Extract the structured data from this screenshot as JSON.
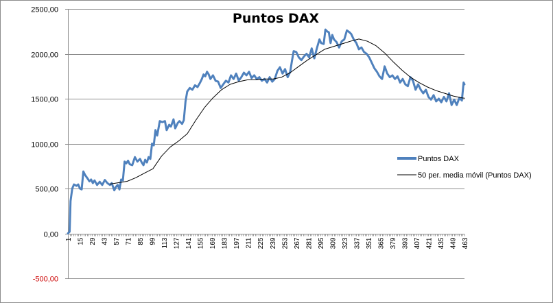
{
  "chart_data": {
    "type": "line",
    "title": "Puntos DAX",
    "xlabel": "",
    "ylabel": "",
    "ylim": [
      -500,
      2500
    ],
    "yticks": [
      -500,
      0,
      500,
      1000,
      1500,
      2000,
      2500
    ],
    "ytick_labels": [
      "-500,00",
      "0,00",
      "500,00",
      "1000,00",
      "1500,00",
      "2000,00",
      "2500,00"
    ],
    "xlim": [
      1,
      463
    ],
    "xticks": [
      1,
      15,
      29,
      43,
      57,
      71,
      85,
      99,
      113,
      127,
      141,
      155,
      169,
      183,
      197,
      211,
      225,
      239,
      253,
      267,
      281,
      295,
      309,
      323,
      337,
      351,
      365,
      379,
      393,
      407,
      421,
      435,
      449,
      463
    ],
    "grid": true,
    "legend_position": "right",
    "series": [
      {
        "name": "Puntos DAX",
        "color": "#4f81bd",
        "points": [
          [
            1,
            0
          ],
          [
            3,
            20
          ],
          [
            4,
            360
          ],
          [
            6,
            500
          ],
          [
            8,
            545
          ],
          [
            11,
            530
          ],
          [
            13,
            545
          ],
          [
            15,
            500
          ],
          [
            17,
            490
          ],
          [
            19,
            690
          ],
          [
            21,
            650
          ],
          [
            24,
            610
          ],
          [
            26,
            580
          ],
          [
            28,
            600
          ],
          [
            30,
            560
          ],
          [
            32,
            590
          ],
          [
            35,
            540
          ],
          [
            38,
            575
          ],
          [
            41,
            540
          ],
          [
            44,
            595
          ],
          [
            47,
            560
          ],
          [
            50,
            540
          ],
          [
            52,
            560
          ],
          [
            55,
            480
          ],
          [
            57,
            520
          ],
          [
            59,
            540
          ],
          [
            61,
            490
          ],
          [
            63,
            600
          ],
          [
            65,
            590
          ],
          [
            67,
            800
          ],
          [
            69,
            780
          ],
          [
            71,
            810
          ],
          [
            73,
            770
          ],
          [
            76,
            760
          ],
          [
            79,
            850
          ],
          [
            82,
            800
          ],
          [
            85,
            830
          ],
          [
            87,
            790
          ],
          [
            89,
            760
          ],
          [
            91,
            820
          ],
          [
            93,
            790
          ],
          [
            95,
            850
          ],
          [
            97,
            830
          ],
          [
            99,
            1000
          ],
          [
            101,
            980
          ],
          [
            103,
            1150
          ],
          [
            105,
            1090
          ],
          [
            108,
            1250
          ],
          [
            111,
            1240
          ],
          [
            114,
            1250
          ],
          [
            116,
            1150
          ],
          [
            119,
            1210
          ],
          [
            121,
            1190
          ],
          [
            124,
            1270
          ],
          [
            126,
            1170
          ],
          [
            129,
            1230
          ],
          [
            131,
            1250
          ],
          [
            134,
            1220
          ],
          [
            136,
            1260
          ],
          [
            138,
            1470
          ],
          [
            140,
            1580
          ],
          [
            143,
            1620
          ],
          [
            146,
            1600
          ],
          [
            149,
            1650
          ],
          [
            152,
            1630
          ],
          [
            155,
            1680
          ],
          [
            157,
            1720
          ],
          [
            159,
            1770
          ],
          [
            161,
            1750
          ],
          [
            163,
            1800
          ],
          [
            165,
            1770
          ],
          [
            167,
            1720
          ],
          [
            170,
            1760
          ],
          [
            173,
            1700
          ],
          [
            176,
            1690
          ],
          [
            179,
            1620
          ],
          [
            182,
            1660
          ],
          [
            185,
            1700
          ],
          [
            188,
            1680
          ],
          [
            191,
            1760
          ],
          [
            194,
            1720
          ],
          [
            197,
            1780
          ],
          [
            200,
            1700
          ],
          [
            203,
            1740
          ],
          [
            206,
            1790
          ],
          [
            209,
            1760
          ],
          [
            212,
            1800
          ],
          [
            215,
            1730
          ],
          [
            218,
            1760
          ],
          [
            221,
            1720
          ],
          [
            224,
            1740
          ],
          [
            227,
            1700
          ],
          [
            230,
            1720
          ],
          [
            233,
            1680
          ],
          [
            236,
            1740
          ],
          [
            239,
            1690
          ],
          [
            242,
            1720
          ],
          [
            245,
            1810
          ],
          [
            248,
            1850
          ],
          [
            251,
            1780
          ],
          [
            254,
            1830
          ],
          [
            257,
            1740
          ],
          [
            260,
            1800
          ],
          [
            262,
            1920
          ],
          [
            264,
            2030
          ],
          [
            267,
            2020
          ],
          [
            270,
            1960
          ],
          [
            273,
            1930
          ],
          [
            276,
            1970
          ],
          [
            279,
            2000
          ],
          [
            282,
            1960
          ],
          [
            285,
            2060
          ],
          [
            288,
            1950
          ],
          [
            291,
            2060
          ],
          [
            294,
            2160
          ],
          [
            296,
            2120
          ],
          [
            299,
            2110
          ],
          [
            301,
            2270
          ],
          [
            303,
            2250
          ],
          [
            305,
            2240
          ],
          [
            307,
            2120
          ],
          [
            309,
            2210
          ],
          [
            311,
            2160
          ],
          [
            314,
            2130
          ],
          [
            317,
            2070
          ],
          [
            320,
            2140
          ],
          [
            323,
            2160
          ],
          [
            326,
            2260
          ],
          [
            329,
            2240
          ],
          [
            331,
            2220
          ],
          [
            334,
            2160
          ],
          [
            337,
            2120
          ],
          [
            340,
            2050
          ],
          [
            343,
            2070
          ],
          [
            346,
            2020
          ],
          [
            349,
            2000
          ],
          [
            352,
            1960
          ],
          [
            355,
            1900
          ],
          [
            358,
            1840
          ],
          [
            361,
            1800
          ],
          [
            364,
            1750
          ],
          [
            367,
            1720
          ],
          [
            370,
            1860
          ],
          [
            373,
            1780
          ],
          [
            376,
            1740
          ],
          [
            379,
            1760
          ],
          [
            382,
            1720
          ],
          [
            385,
            1750
          ],
          [
            388,
            1680
          ],
          [
            391,
            1720
          ],
          [
            394,
            1660
          ],
          [
            397,
            1640
          ],
          [
            400,
            1740
          ],
          [
            403,
            1700
          ],
          [
            406,
            1600
          ],
          [
            409,
            1660
          ],
          [
            412,
            1600
          ],
          [
            415,
            1560
          ],
          [
            418,
            1600
          ],
          [
            421,
            1520
          ],
          [
            424,
            1490
          ],
          [
            427,
            1540
          ],
          [
            430,
            1470
          ],
          [
            433,
            1500
          ],
          [
            436,
            1460
          ],
          [
            439,
            1520
          ],
          [
            442,
            1470
          ],
          [
            445,
            1560
          ],
          [
            448,
            1430
          ],
          [
            451,
            1490
          ],
          [
            454,
            1430
          ],
          [
            457,
            1510
          ],
          [
            460,
            1480
          ],
          [
            462,
            1680
          ],
          [
            463,
            1660
          ]
        ]
      },
      {
        "name": "50 per. media móvil (Puntos DAX)",
        "color": "#000000",
        "points": [
          [
            50,
            550
          ],
          [
            60,
            565
          ],
          [
            70,
            580
          ],
          [
            80,
            620
          ],
          [
            90,
            670
          ],
          [
            100,
            720
          ],
          [
            110,
            860
          ],
          [
            120,
            960
          ],
          [
            130,
            1030
          ],
          [
            140,
            1110
          ],
          [
            150,
            1260
          ],
          [
            160,
            1400
          ],
          [
            170,
            1510
          ],
          [
            180,
            1600
          ],
          [
            190,
            1660
          ],
          [
            200,
            1690
          ],
          [
            210,
            1710
          ],
          [
            220,
            1710
          ],
          [
            230,
            1720
          ],
          [
            240,
            1720
          ],
          [
            250,
            1740
          ],
          [
            260,
            1790
          ],
          [
            270,
            1860
          ],
          [
            280,
            1930
          ],
          [
            290,
            1990
          ],
          [
            300,
            2050
          ],
          [
            310,
            2080
          ],
          [
            320,
            2110
          ],
          [
            330,
            2140
          ],
          [
            340,
            2165
          ],
          [
            350,
            2140
          ],
          [
            360,
            2090
          ],
          [
            370,
            2010
          ],
          [
            380,
            1910
          ],
          [
            390,
            1820
          ],
          [
            400,
            1740
          ],
          [
            410,
            1680
          ],
          [
            420,
            1630
          ],
          [
            430,
            1590
          ],
          [
            440,
            1560
          ],
          [
            450,
            1530
          ],
          [
            460,
            1510
          ],
          [
            463,
            1505
          ]
        ]
      }
    ]
  }
}
